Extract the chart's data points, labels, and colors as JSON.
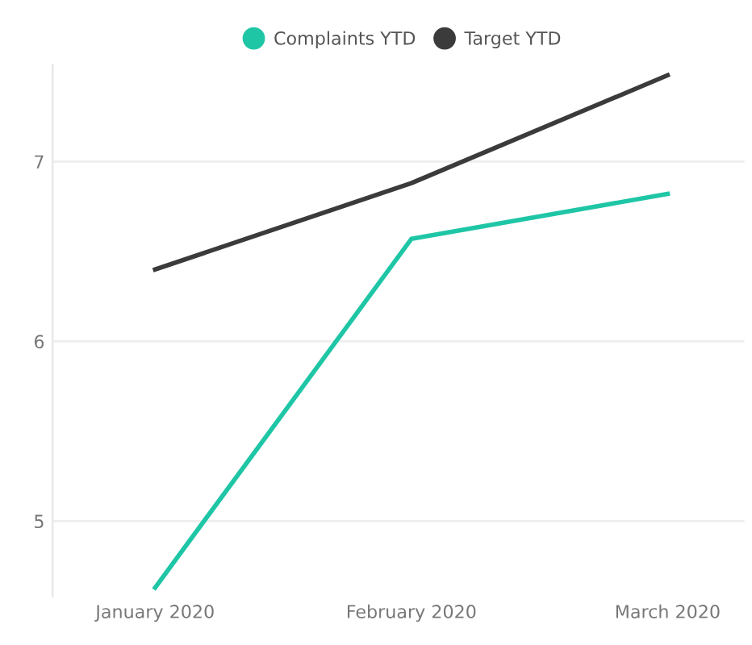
{
  "chart_data": {
    "type": "line",
    "categories": [
      "January 2020",
      "February 2020",
      "March 2020"
    ],
    "series": [
      {
        "name": "Complaints YTD",
        "color": "#1fc6a6",
        "values": [
          4.63,
          6.57,
          6.82
        ]
      },
      {
        "name": "Target YTD",
        "color": "#3b3b3b",
        "values": [
          6.4,
          6.88,
          7.48
        ]
      }
    ],
    "ylim": [
      4.58,
      7.54
    ],
    "yticks": [
      5,
      6,
      7
    ],
    "grid": "y",
    "legend": "top",
    "marker": "none",
    "line_style": "solid"
  }
}
